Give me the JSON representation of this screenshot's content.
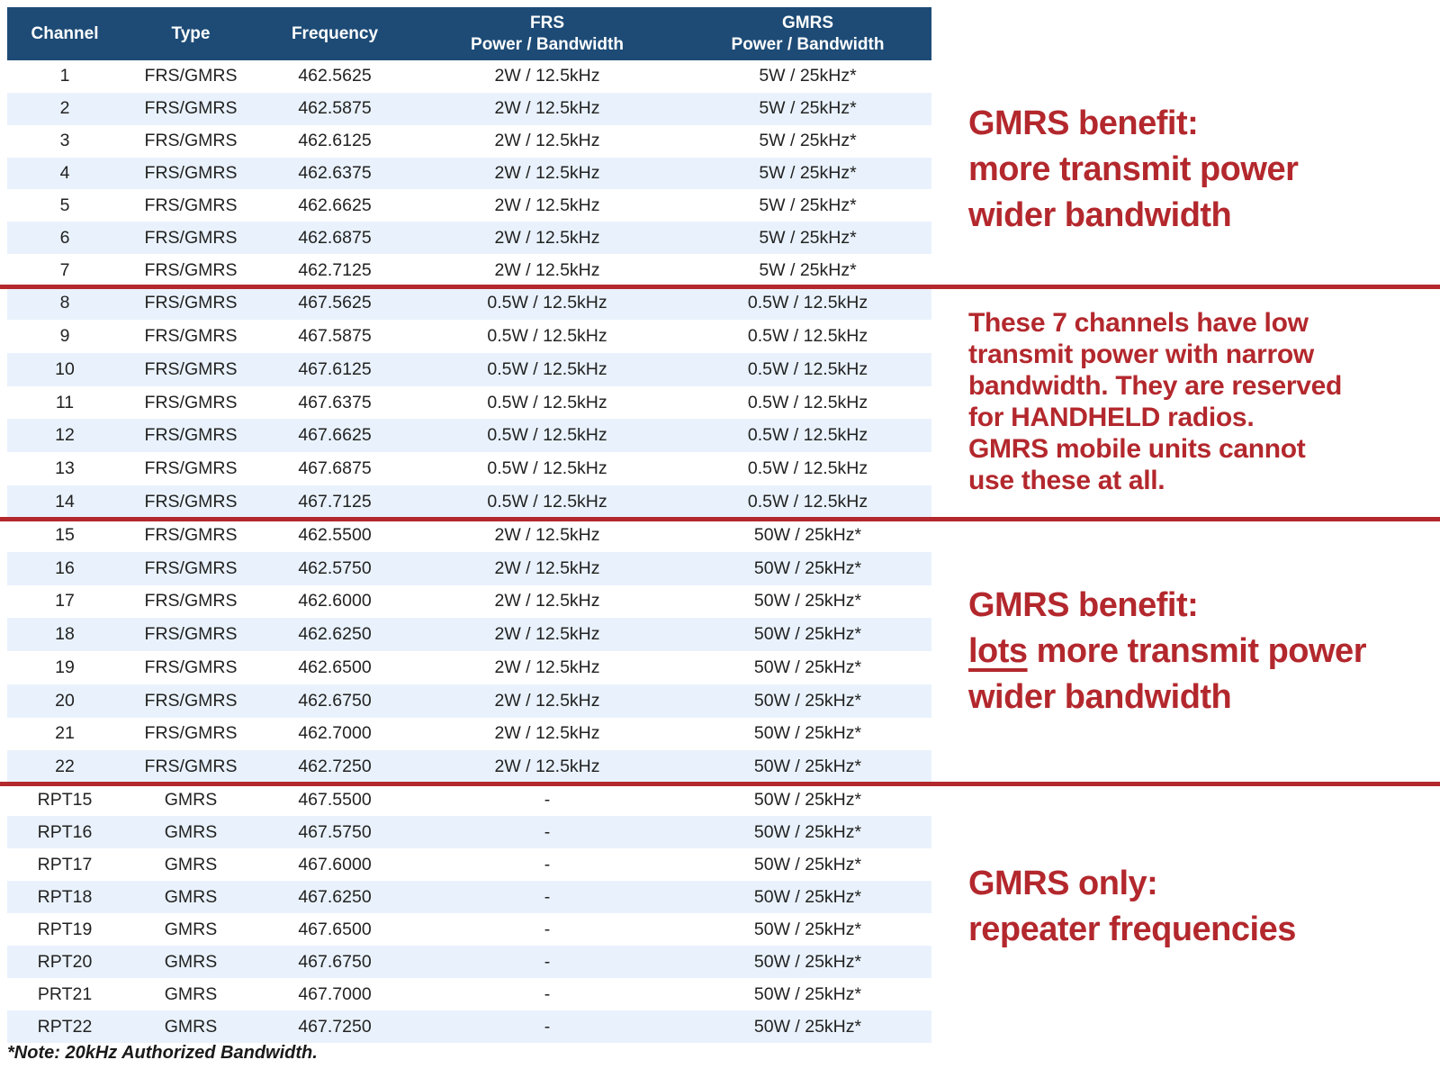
{
  "colors": {
    "header_bg": "#1d4b76",
    "row_alt": "#e9f2fc",
    "accent_red": "#b3282d"
  },
  "table": {
    "columns": [
      {
        "line1": "Channel",
        "line2": ""
      },
      {
        "line1": "Type",
        "line2": ""
      },
      {
        "line1": "Frequency",
        "line2": ""
      },
      {
        "line1": "FRS",
        "line2": "Power / Bandwidth"
      },
      {
        "line1": "GMRS",
        "line2": "Power / Bandwidth"
      }
    ],
    "rows": [
      [
        "1",
        "FRS/GMRS",
        "462.5625",
        "2W / 12.5kHz",
        "5W / 25kHz*"
      ],
      [
        "2",
        "FRS/GMRS",
        "462.5875",
        "2W / 12.5kHz",
        "5W / 25kHz*"
      ],
      [
        "3",
        "FRS/GMRS",
        "462.6125",
        "2W / 12.5kHz",
        "5W / 25kHz*"
      ],
      [
        "4",
        "FRS/GMRS",
        "462.6375",
        "2W / 12.5kHz",
        "5W / 25kHz*"
      ],
      [
        "5",
        "FRS/GMRS",
        "462.6625",
        "2W / 12.5kHz",
        "5W / 25kHz*"
      ],
      [
        "6",
        "FRS/GMRS",
        "462.6875",
        "2W / 12.5kHz",
        "5W / 25kHz*"
      ],
      [
        "7",
        "FRS/GMRS",
        "462.7125",
        "2W / 12.5kHz",
        "5W / 25kHz*"
      ],
      [
        "8",
        "FRS/GMRS",
        "467.5625",
        "0.5W / 12.5kHz",
        "0.5W / 12.5kHz"
      ],
      [
        "9",
        "FRS/GMRS",
        "467.5875",
        "0.5W / 12.5kHz",
        "0.5W / 12.5kHz"
      ],
      [
        "10",
        "FRS/GMRS",
        "467.6125",
        "0.5W / 12.5kHz",
        "0.5W / 12.5kHz"
      ],
      [
        "11",
        "FRS/GMRS",
        "467.6375",
        "0.5W / 12.5kHz",
        "0.5W / 12.5kHz"
      ],
      [
        "12",
        "FRS/GMRS",
        "467.6625",
        "0.5W / 12.5kHz",
        "0.5W / 12.5kHz"
      ],
      [
        "13",
        "FRS/GMRS",
        "467.6875",
        "0.5W / 12.5kHz",
        "0.5W / 12.5kHz"
      ],
      [
        "14",
        "FRS/GMRS",
        "467.7125",
        "0.5W / 12.5kHz",
        "0.5W / 12.5kHz"
      ],
      [
        "15",
        "FRS/GMRS",
        "462.5500",
        "2W / 12.5kHz",
        "50W / 25kHz*"
      ],
      [
        "16",
        "FRS/GMRS",
        "462.5750",
        "2W / 12.5kHz",
        "50W / 25kHz*"
      ],
      [
        "17",
        "FRS/GMRS",
        "462.6000",
        "2W / 12.5kHz",
        "50W / 25kHz*"
      ],
      [
        "18",
        "FRS/GMRS",
        "462.6250",
        "2W / 12.5kHz",
        "50W / 25kHz*"
      ],
      [
        "19",
        "FRS/GMRS",
        "462.6500",
        "2W / 12.5kHz",
        "50W / 25kHz*"
      ],
      [
        "20",
        "FRS/GMRS",
        "462.6750",
        "2W / 12.5kHz",
        "50W / 25kHz*"
      ],
      [
        "21",
        "FRS/GMRS",
        "462.7000",
        "2W / 12.5kHz",
        "50W / 25kHz*"
      ],
      [
        "22",
        "FRS/GMRS",
        "462.7250",
        "2W / 12.5kHz",
        "50W / 25kHz*"
      ],
      [
        "RPT15",
        "GMRS",
        "467.5500",
        "-",
        "50W / 25kHz*"
      ],
      [
        "RPT16",
        "GMRS",
        "467.5750",
        "-",
        "50W / 25kHz*"
      ],
      [
        "RPT17",
        "GMRS",
        "467.6000",
        "-",
        "50W / 25kHz*"
      ],
      [
        "RPT18",
        "GMRS",
        "467.6250",
        "-",
        "50W / 25kHz*"
      ],
      [
        "RPT19",
        "GMRS",
        "467.6500",
        "-",
        "50W / 25kHz*"
      ],
      [
        "RPT20",
        "GMRS",
        "467.6750",
        "-",
        "50W / 25kHz*"
      ],
      [
        "PRT21",
        "GMRS",
        "467.7000",
        "-",
        "50W / 25kHz*"
      ],
      [
        "RPT22",
        "GMRS",
        "467.7250",
        "-",
        "50W / 25kHz*"
      ]
    ],
    "sections": {
      "s1_end": 7,
      "s2_end": 14,
      "s3_end": 22,
      "s4_end": 30
    }
  },
  "annotations": {
    "benefit1": {
      "lines": [
        "GMRS benefit:",
        "more transmit power",
        "wider bandwidth"
      ]
    },
    "handheld": {
      "lines": [
        "These 7 channels have low",
        "transmit power with narrow",
        "bandwidth. They are reserved",
        "for HANDHELD radios.",
        "GMRS mobile units cannot",
        "use these at all."
      ]
    },
    "benefit2": {
      "line1": "GMRS benefit:",
      "line2_underlined": "lots",
      "line2_rest": " more transmit power",
      "line3": "wider bandwidth"
    },
    "gmrs_only": {
      "lines": [
        "GMRS only:",
        "repeater frequencies"
      ]
    }
  },
  "footnote": "*Note: 20kHz Authorized Bandwidth."
}
